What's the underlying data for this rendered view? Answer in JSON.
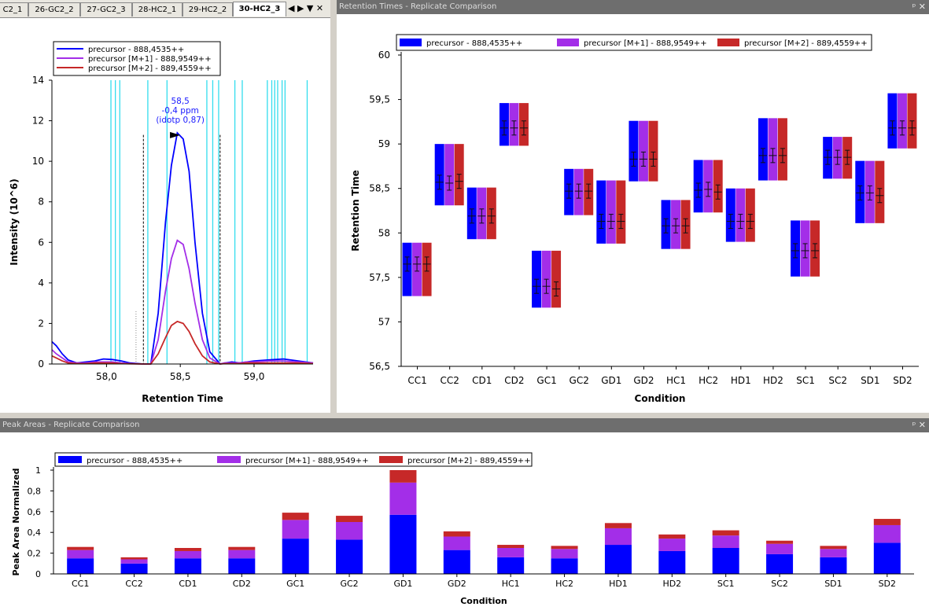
{
  "tabs": [
    "C2_1",
    "26-GC2_2",
    "27-GC2_3",
    "28-HC2_1",
    "29-HC2_2",
    "30-HC2_3"
  ],
  "tab_controls": "◀ ▶ ▼ ✕",
  "panels": {
    "rt_title": "Retention Times - Replicate Comparison",
    "pa_title": "Peak Areas - Replicate Comparison",
    "pin_close": "ᵖ ✕"
  },
  "colors": {
    "precursor": "#0000ff",
    "m1": "#a32ee8",
    "m2": "#c62828",
    "cyan": "#33ddee"
  },
  "chart_data": [
    {
      "type": "line",
      "title": "",
      "xlabel": "Retention Time",
      "ylabel": "Intensity (10^6)",
      "xlim": [
        57.63,
        59.4
      ],
      "ylim": [
        0,
        14
      ],
      "xticks": [
        "58,0",
        "58,5",
        "59,0"
      ],
      "yticks": [
        "0",
        "2",
        "4",
        "6",
        "8",
        "10",
        "12",
        "14"
      ],
      "legend_placement": "top-left",
      "annotation": [
        "58,5",
        "-0,4 ppm",
        "(idotp 0,87)"
      ],
      "series": [
        {
          "name": "precursor - 888,4535++",
          "x": [
            57.63,
            57.66,
            57.7,
            57.74,
            57.8,
            57.86,
            57.92,
            57.98,
            58.04,
            58.1,
            58.16,
            58.25,
            58.3,
            58.35,
            58.4,
            58.44,
            58.48,
            58.52,
            58.56,
            58.6,
            58.65,
            58.7,
            58.77,
            58.8,
            58.85,
            58.9,
            58.95,
            59.0,
            59.1,
            59.2,
            59.3,
            59.4
          ],
          "y": [
            1.1,
            0.9,
            0.5,
            0.2,
            0.05,
            0.1,
            0.15,
            0.25,
            0.22,
            0.15,
            0.05,
            0,
            0,
            2.5,
            7.0,
            9.8,
            11.4,
            11.1,
            9.5,
            6.0,
            2.5,
            0.6,
            0,
            0.05,
            0.1,
            0.05,
            0.1,
            0.15,
            0.2,
            0.25,
            0.15,
            0.05
          ]
        },
        {
          "name": "precursor [M+1] - 888,9549++",
          "x": [
            57.63,
            57.66,
            57.7,
            57.74,
            57.8,
            57.86,
            57.92,
            57.98,
            58.04,
            58.1,
            58.16,
            58.25,
            58.3,
            58.35,
            58.4,
            58.44,
            58.48,
            58.52,
            58.56,
            58.6,
            58.65,
            58.7,
            58.77,
            58.8,
            58.85,
            58.9,
            58.95,
            59.0,
            59.1,
            59.2,
            59.3,
            59.4
          ],
          "y": [
            0.7,
            0.5,
            0.3,
            0.1,
            0.05,
            0.05,
            0.1,
            0.1,
            0.1,
            0.05,
            0.02,
            0,
            0,
            1.2,
            3.6,
            5.2,
            6.1,
            5.9,
            4.7,
            3.0,
            1.2,
            0.3,
            0,
            0.05,
            0.05,
            0.05,
            0.1,
            0.1,
            0.15,
            0.15,
            0.1,
            0.05
          ]
        },
        {
          "name": "precursor [M+2] - 889,4559++",
          "x": [
            57.63,
            57.66,
            57.7,
            57.74,
            57.8,
            57.86,
            57.92,
            57.98,
            58.04,
            58.1,
            58.16,
            58.25,
            58.3,
            58.35,
            58.4,
            58.44,
            58.48,
            58.52,
            58.56,
            58.6,
            58.65,
            58.7,
            58.77,
            58.8,
            58.85,
            58.9,
            58.95,
            59.0,
            59.1,
            59.2,
            59.3,
            59.4
          ],
          "y": [
            0.4,
            0.3,
            0.15,
            0.05,
            0.02,
            0.02,
            0.05,
            0.05,
            0.05,
            0.02,
            0.01,
            0,
            0,
            0.5,
            1.3,
            1.9,
            2.1,
            2.0,
            1.6,
            1.0,
            0.4,
            0.1,
            0,
            0.02,
            0.02,
            0.02,
            0.05,
            0.05,
            0.05,
            0.05,
            0.05,
            0.02
          ]
        }
      ],
      "peak_boundaries": [
        58.25,
        58.77
      ],
      "cyan_lines": [
        58.03,
        58.06,
        58.09,
        58.28,
        58.41,
        58.68,
        58.72,
        58.76,
        58.87,
        58.92,
        59.09,
        59.12,
        59.14,
        59.16,
        59.19,
        59.21,
        59.36
      ]
    },
    {
      "type": "box",
      "title": "",
      "xlabel": "Condition",
      "ylabel": "Retention Time",
      "ylim": [
        56.5,
        60
      ],
      "yticks": [
        "56,5",
        "57",
        "57,5",
        "58",
        "58,5",
        "59",
        "59,5",
        "60"
      ],
      "legend_placement": "top",
      "categories": [
        "CC1",
        "CC2",
        "CD1",
        "CD2",
        "GC1",
        "GC2",
        "GD1",
        "GD2",
        "HC1",
        "HC2",
        "HD1",
        "HD2",
        "SC1",
        "SC2",
        "SD1",
        "SD2"
      ],
      "series": [
        {
          "name": "precursor - 888,4535++",
          "low": [
            57.29,
            58.31,
            57.93,
            58.98,
            57.16,
            58.2,
            57.88,
            58.58,
            57.82,
            58.23,
            57.9,
            58.59,
            57.51,
            58.61,
            58.11,
            58.95
          ],
          "high": [
            57.89,
            59.0,
            58.51,
            59.46,
            57.8,
            58.72,
            58.59,
            59.26,
            58.37,
            58.82,
            58.5,
            59.29,
            58.14,
            59.08,
            58.81,
            59.57
          ],
          "mean": [
            57.65,
            58.57,
            58.19,
            59.18,
            57.4,
            58.47,
            58.13,
            58.83,
            58.08,
            58.48,
            58.13,
            58.87,
            57.8,
            58.85,
            58.45,
            59.18
          ]
        },
        {
          "name": "precursor [M+1] - 888,9549++",
          "low": [
            57.29,
            58.31,
            57.93,
            58.98,
            57.16,
            58.2,
            57.88,
            58.58,
            57.82,
            58.23,
            57.9,
            58.59,
            57.51,
            58.61,
            58.11,
            58.95
          ],
          "high": [
            57.89,
            59.0,
            58.51,
            59.46,
            57.8,
            58.72,
            58.59,
            59.26,
            58.37,
            58.82,
            58.5,
            59.29,
            58.14,
            59.08,
            58.81,
            59.57
          ],
          "mean": [
            57.65,
            58.56,
            58.19,
            59.18,
            57.4,
            58.47,
            58.13,
            58.83,
            58.08,
            58.49,
            58.13,
            58.87,
            57.8,
            58.85,
            58.45,
            59.18
          ]
        },
        {
          "name": "precursor [M+2] - 889,4559++",
          "low": [
            57.29,
            58.31,
            57.93,
            58.98,
            57.16,
            58.2,
            57.88,
            58.58,
            57.82,
            58.23,
            57.9,
            58.59,
            57.51,
            58.61,
            58.11,
            58.95
          ],
          "high": [
            57.89,
            59.0,
            58.51,
            59.46,
            57.8,
            58.72,
            58.59,
            59.26,
            58.37,
            58.82,
            58.5,
            59.29,
            58.14,
            59.08,
            58.81,
            59.57
          ],
          "mean": [
            57.65,
            58.58,
            58.19,
            59.18,
            57.37,
            58.47,
            58.13,
            58.83,
            58.08,
            58.46,
            58.13,
            58.87,
            57.8,
            58.85,
            58.42,
            59.18
          ]
        }
      ]
    },
    {
      "type": "bar",
      "stacked": true,
      "title": "",
      "xlabel": "Condition",
      "ylabel": "Peak Area Normalized",
      "ylim": [
        0,
        1
      ],
      "yticks": [
        "0",
        "0,2",
        "0,4",
        "0,6",
        "0,8",
        "1"
      ],
      "legend_placement": "top-left",
      "categories": [
        "CC1",
        "CC2",
        "CD1",
        "CD2",
        "GC1",
        "GC2",
        "GD1",
        "GD2",
        "HC1",
        "HC2",
        "HD1",
        "HD2",
        "SC1",
        "SC2",
        "SD1",
        "SD2"
      ],
      "series": [
        {
          "name": "precursor - 888,4535++",
          "values": [
            0.15,
            0.1,
            0.15,
            0.15,
            0.34,
            0.33,
            0.57,
            0.23,
            0.16,
            0.15,
            0.28,
            0.22,
            0.25,
            0.19,
            0.16,
            0.3
          ]
        },
        {
          "name": "precursor [M+1] - 888,9549++",
          "values": [
            0.08,
            0.04,
            0.07,
            0.08,
            0.18,
            0.17,
            0.31,
            0.13,
            0.09,
            0.09,
            0.16,
            0.12,
            0.12,
            0.1,
            0.08,
            0.17
          ]
        },
        {
          "name": "precursor [M+2] - 889,4559++",
          "values": [
            0.03,
            0.02,
            0.03,
            0.03,
            0.07,
            0.06,
            0.12,
            0.05,
            0.03,
            0.03,
            0.05,
            0.04,
            0.05,
            0.03,
            0.03,
            0.06
          ]
        }
      ]
    }
  ]
}
